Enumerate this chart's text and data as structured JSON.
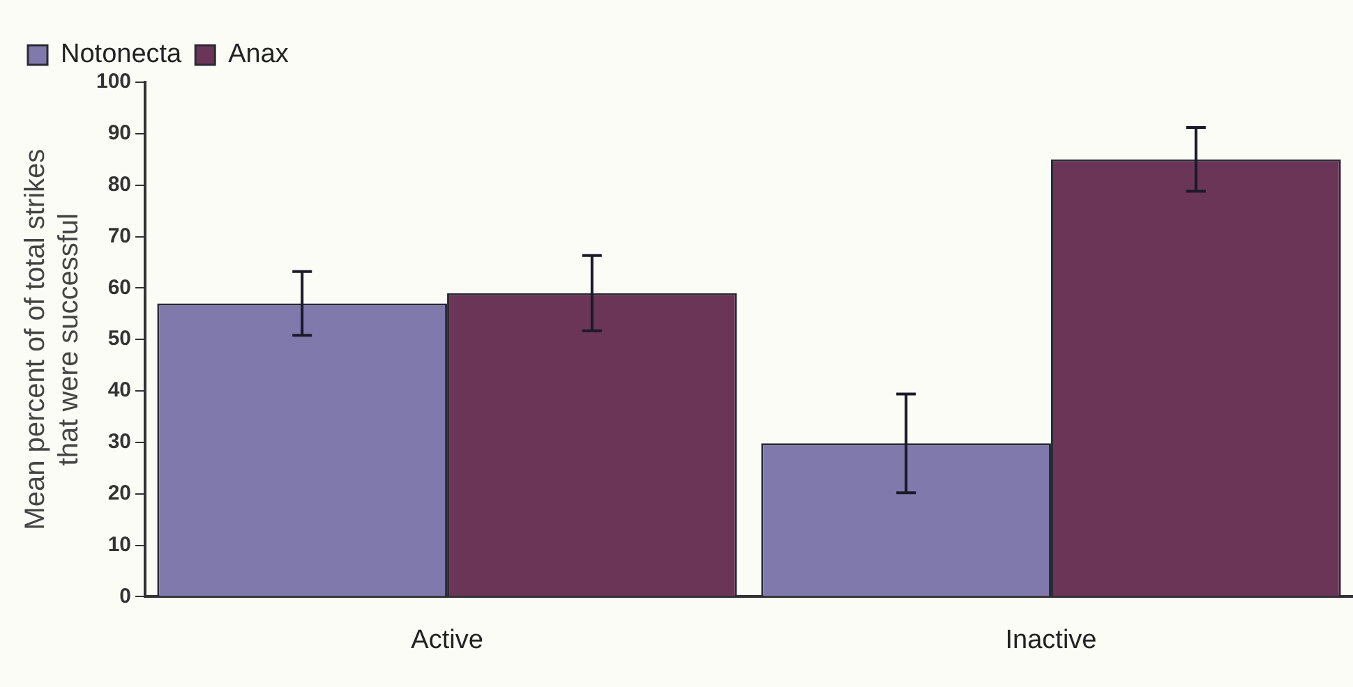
{
  "chart_data": {
    "type": "bar",
    "ylabel": "Mean percent of of total strikes\nthat were successful",
    "categories": [
      "Active",
      "Inactive"
    ],
    "series": [
      {
        "name": "Notonecta",
        "color": "#7f7aab",
        "values": [
          57,
          29.8
        ],
        "errors": [
          6.2,
          9.6
        ]
      },
      {
        "name": "Anax",
        "color": "#6b3558",
        "values": [
          59,
          85
        ],
        "errors": [
          7.3,
          6.2
        ]
      }
    ],
    "ylim": [
      0,
      100
    ],
    "yticks": [
      0,
      10,
      20,
      30,
      40,
      50,
      60,
      70,
      80,
      90,
      100
    ],
    "grid": false,
    "legend": "top left"
  }
}
